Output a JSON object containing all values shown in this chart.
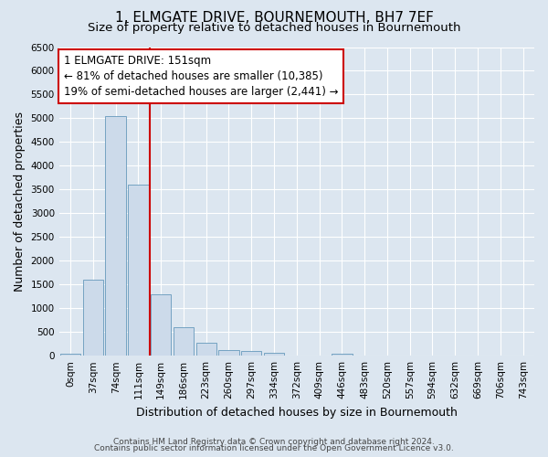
{
  "title": "1, ELMGATE DRIVE, BOURNEMOUTH, BH7 7EF",
  "subtitle": "Size of property relative to detached houses in Bournemouth",
  "xlabel": "Distribution of detached houses by size in Bournemouth",
  "ylabel": "Number of detached properties",
  "footnote1": "Contains HM Land Registry data © Crown copyright and database right 2024.",
  "footnote2": "Contains public sector information licensed under the Open Government Licence v3.0.",
  "bin_labels": [
    "0sqm",
    "37sqm",
    "74sqm",
    "111sqm",
    "149sqm",
    "186sqm",
    "223sqm",
    "260sqm",
    "297sqm",
    "334sqm",
    "372sqm",
    "409sqm",
    "446sqm",
    "483sqm",
    "520sqm",
    "557sqm",
    "594sqm",
    "632sqm",
    "669sqm",
    "706sqm",
    "743sqm"
  ],
  "bar_heights": [
    50,
    1600,
    5050,
    3600,
    1300,
    600,
    275,
    120,
    100,
    65,
    10,
    5,
    35,
    5,
    2,
    2,
    2,
    2,
    2,
    2,
    0
  ],
  "bar_color": "#ccdaea",
  "bar_edge_color": "#6699bb",
  "vline_color": "#cc0000",
  "annotation_text": "1 ELMGATE DRIVE: 151sqm\n← 81% of detached houses are smaller (10,385)\n19% of semi-detached houses are larger (2,441) →",
  "annotation_box_color": "#cc0000",
  "ylim": [
    0,
    6500
  ],
  "yticks": [
    0,
    500,
    1000,
    1500,
    2000,
    2500,
    3000,
    3500,
    4000,
    4500,
    5000,
    5500,
    6000,
    6500
  ],
  "background_color": "#dce6f0",
  "grid_color": "#ffffff",
  "title_fontsize": 11,
  "subtitle_fontsize": 9.5,
  "label_fontsize": 9,
  "tick_fontsize": 7.5,
  "annotation_fontsize": 8.5
}
